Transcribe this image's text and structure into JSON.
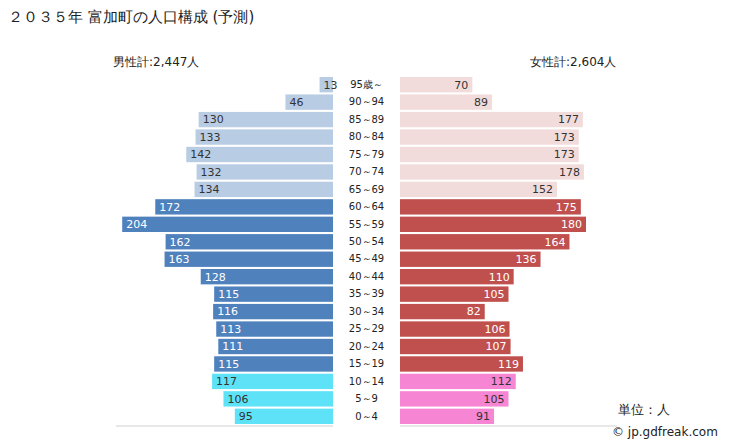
{
  "chart_data": {
    "type": "bar",
    "orientation": "horizontal",
    "title": "２０３５年 富加町の人口構成 (予測)",
    "categories": [
      "95歳～",
      "90～94",
      "85～89",
      "80～84",
      "75～79",
      "70～74",
      "65～69",
      "60～64",
      "55～59",
      "50～54",
      "45～49",
      "40～44",
      "35～39",
      "30～34",
      "25～29",
      "20～24",
      "15～19",
      "10～14",
      "5～9",
      "0～4"
    ],
    "series": [
      {
        "name": "男性計:2,447人",
        "colors": [
          "#b8cce4",
          "#b8cce4",
          "#b8cce4",
          "#b8cce4",
          "#b8cce4",
          "#b8cce4",
          "#b8cce4",
          "#4f81bd",
          "#4f81bd",
          "#4f81bd",
          "#4f81bd",
          "#4f81bd",
          "#4f81bd",
          "#4f81bd",
          "#4f81bd",
          "#4f81bd",
          "#4f81bd",
          "#5de2f8",
          "#5de2f8",
          "#5de2f8"
        ],
        "values": [
          13,
          46,
          130,
          133,
          142,
          132,
          134,
          172,
          204,
          162,
          163,
          128,
          115,
          116,
          113,
          111,
          115,
          117,
          106,
          95
        ]
      },
      {
        "name": "女性計:2,604人",
        "colors": [
          "#f2dcdb",
          "#f2dcdb",
          "#f2dcdb",
          "#f2dcdb",
          "#f2dcdb",
          "#f2dcdb",
          "#f2dcdb",
          "#c0504d",
          "#c0504d",
          "#c0504d",
          "#c0504d",
          "#c0504d",
          "#c0504d",
          "#c0504d",
          "#c0504d",
          "#c0504d",
          "#c0504d",
          "#f685d4",
          "#f685d4",
          "#f685d4"
        ],
        "values": [
          70,
          89,
          177,
          173,
          173,
          178,
          152,
          175,
          180,
          164,
          136,
          110,
          105,
          82,
          106,
          107,
          119,
          112,
          105,
          91
        ]
      }
    ],
    "xlim": [
      0,
      210
    ],
    "data_labels": true,
    "tick_labels": "y",
    "annotations": [
      "単位：人",
      "© jp.gdfreak.com"
    ]
  }
}
